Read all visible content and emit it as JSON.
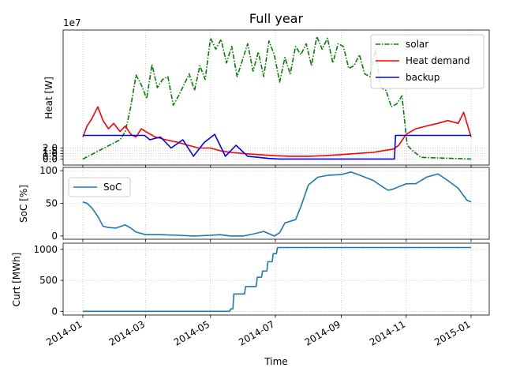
{
  "figure": {
    "title": "Full year",
    "xlabel": "Time",
    "x_ticks": [
      "2014-01",
      "2014-03",
      "2014-05",
      "2014-07",
      "2014-09",
      "2014-11",
      "2015-01"
    ],
    "x_range": [
      "2014-01-01",
      "2015-01-01"
    ],
    "grid": true
  },
  "chart_data": [
    {
      "type": "line",
      "ylabel": "Heat [W]",
      "y_offset_label": "1e7",
      "ylim": [
        -1.1,
        23.5
      ],
      "y_scale_factor": 10000000,
      "y_ticks": [
        0.0,
        0.5,
        1.0,
        1.5,
        2.0
      ],
      "y_tick_labels": [
        "0.0",
        "0.5",
        "1.0",
        "1.5",
        "2.0"
      ],
      "legend_position": "top-right",
      "series": [
        {
          "name": "solar",
          "color": "#008000",
          "style": "dash-dot",
          "x": [
            "2014-01-01",
            "2014-02-05",
            "2014-02-10",
            "2014-02-15",
            "2014-02-20",
            "2014-02-25",
            "2014-03-02",
            "2014-03-07",
            "2014-03-12",
            "2014-03-17",
            "2014-03-22",
            "2014-03-27",
            "2014-04-01",
            "2014-04-06",
            "2014-04-11",
            "2014-04-16",
            "2014-04-21",
            "2014-04-26",
            "2014-05-01",
            "2014-05-06",
            "2014-05-11",
            "2014-05-16",
            "2014-05-21",
            "2014-05-26",
            "2014-05-31",
            "2014-06-05",
            "2014-06-10",
            "2014-06-15",
            "2014-06-20",
            "2014-06-25",
            "2014-06-30",
            "2014-07-05",
            "2014-07-10",
            "2014-07-15",
            "2014-07-20",
            "2014-07-25",
            "2014-07-30",
            "2014-08-04",
            "2014-08-09",
            "2014-08-14",
            "2014-08-19",
            "2014-08-24",
            "2014-08-29",
            "2014-09-03",
            "2014-09-08",
            "2014-09-13",
            "2014-09-18",
            "2014-09-23",
            "2014-09-28",
            "2014-10-03",
            "2014-10-08",
            "2014-10-13",
            "2014-10-18",
            "2014-10-23",
            "2014-10-28",
            "2014-11-02",
            "2014-11-07",
            "2014-11-15",
            "2015-01-01"
          ],
          "values": [
            0.0,
            3.5,
            5.0,
            9.5,
            15.3,
            13.5,
            11.0,
            17.2,
            13.0,
            14.5,
            15.0,
            9.8,
            11.5,
            13.5,
            15.5,
            12.5,
            17.0,
            14.5,
            22.0,
            20.0,
            21.8,
            17.5,
            20.5,
            15.0,
            18.0,
            21.0,
            16.0,
            19.5,
            15.0,
            21.5,
            19.0,
            14.0,
            18.5,
            15.5,
            20.5,
            19.0,
            21.0,
            17.0,
            22.3,
            20.0,
            22.0,
            17.5,
            21.0,
            20.5,
            16.5,
            17.0,
            19.0,
            15.5,
            15.0,
            20.0,
            13.0,
            12.5,
            9.5,
            10.0,
            11.5,
            2.5,
            1.5,
            0.3,
            0.0
          ]
        },
        {
          "name": "Heat demand",
          "color": "#ff0000",
          "style": "solid",
          "x": [
            "2014-01-01",
            "2014-01-05",
            "2014-01-10",
            "2014-01-15",
            "2014-01-20",
            "2014-01-25",
            "2014-01-30",
            "2014-02-05",
            "2014-02-10",
            "2014-02-15",
            "2014-02-20",
            "2014-02-25",
            "2014-03-01",
            "2014-03-10",
            "2014-03-20",
            "2014-04-01",
            "2014-04-10",
            "2014-04-20",
            "2014-05-01",
            "2014-05-10",
            "2014-05-20",
            "2014-06-01",
            "2014-06-15",
            "2014-07-01",
            "2014-07-15",
            "2014-08-01",
            "2014-08-15",
            "2014-09-01",
            "2014-09-15",
            "2014-10-01",
            "2014-10-10",
            "2014-10-20",
            "2014-10-25",
            "2014-11-01",
            "2014-11-10",
            "2014-11-20",
            "2014-12-01",
            "2014-12-10",
            "2014-12-20",
            "2014-12-25",
            "2015-01-01"
          ],
          "values": [
            4.0,
            6.0,
            7.5,
            9.5,
            7.0,
            5.5,
            6.5,
            5.0,
            6.0,
            4.5,
            4.0,
            5.5,
            5.0,
            4.0,
            3.5,
            3.0,
            2.5,
            2.0,
            2.0,
            1.5,
            1.2,
            1.0,
            0.8,
            0.6,
            0.5,
            0.5,
            0.6,
            0.8,
            1.0,
            1.2,
            1.5,
            1.8,
            2.5,
            4.5,
            5.5,
            6.0,
            6.5,
            7.0,
            6.5,
            8.5,
            4.0
          ]
        },
        {
          "name": "backup",
          "color": "#0000ff",
          "style": "solid",
          "x": [
            "2014-01-01",
            "2014-02-28",
            "2014-03-05",
            "2014-03-15",
            "2014-03-25",
            "2014-04-05",
            "2014-04-15",
            "2014-04-25",
            "2014-05-05",
            "2014-05-15",
            "2014-05-25",
            "2014-06-05",
            "2014-06-15",
            "2014-06-25",
            "2014-07-05",
            "2014-08-01",
            "2014-09-01",
            "2014-10-01",
            "2014-10-21",
            "2014-10-22",
            "2015-01-01"
          ],
          "values": [
            4.3,
            4.3,
            3.5,
            4.0,
            2.0,
            3.5,
            0.5,
            3.0,
            4.5,
            0.5,
            2.5,
            0.5,
            0.3,
            0.1,
            0.0,
            0.0,
            0.0,
            0.0,
            0.0,
            4.3,
            4.3
          ]
        }
      ]
    },
    {
      "type": "line",
      "ylabel": "SoC [%]",
      "ylim": [
        -5,
        105
      ],
      "y_ticks": [
        0,
        50,
        100
      ],
      "y_tick_labels": [
        "0",
        "50",
        "100"
      ],
      "legend_position": "top-left",
      "series": [
        {
          "name": "SoC",
          "color": "#1f77b4",
          "style": "solid",
          "x": [
            "2014-01-01",
            "2014-01-05",
            "2014-01-10",
            "2014-01-15",
            "2014-01-20",
            "2014-01-25",
            "2014-02-01",
            "2014-02-10",
            "2014-02-15",
            "2014-02-20",
            "2014-03-01",
            "2014-03-15",
            "2014-04-01",
            "2014-04-15",
            "2014-05-01",
            "2014-05-10",
            "2014-05-20",
            "2014-06-01",
            "2014-06-10",
            "2014-06-20",
            "2014-06-30",
            "2014-07-05",
            "2014-07-10",
            "2014-07-20",
            "2014-07-25",
            "2014-08-01",
            "2014-08-10",
            "2014-08-20",
            "2014-09-01",
            "2014-09-10",
            "2014-09-20",
            "2014-10-01",
            "2014-10-10",
            "2014-10-15",
            "2014-10-20",
            "2014-11-01",
            "2014-11-10",
            "2014-11-20",
            "2014-12-01",
            "2014-12-10",
            "2014-12-20",
            "2014-12-28",
            "2015-01-01"
          ],
          "values": [
            52,
            50,
            42,
            30,
            15,
            13,
            12,
            17,
            12,
            6,
            2,
            2,
            1,
            0,
            1,
            2,
            0,
            0,
            3,
            7,
            0,
            5,
            20,
            25,
            45,
            78,
            90,
            93,
            94,
            98,
            92,
            85,
            75,
            70,
            72,
            80,
            80,
            90,
            95,
            85,
            73,
            55,
            52
          ]
        }
      ]
    },
    {
      "type": "line",
      "ylabel": "Curt [MWh]",
      "ylim": [
        -60,
        1100
      ],
      "y_ticks": [
        0,
        500,
        1000
      ],
      "y_tick_labels": [
        "0",
        "500",
        "1000"
      ],
      "series": [
        {
          "name": "",
          "color": "#1f77b4",
          "style": "solid",
          "x": [
            "2014-01-01",
            "2014-05-19",
            "2014-05-20",
            "2014-05-22",
            "2014-05-23",
            "2014-06-02",
            "2014-06-03",
            "2014-06-13",
            "2014-06-14",
            "2014-06-18",
            "2014-06-19",
            "2014-06-23",
            "2014-06-24",
            "2014-06-28",
            "2014-06-29",
            "2014-07-02",
            "2014-07-03",
            "2015-01-01"
          ],
          "values": [
            0,
            0,
            40,
            40,
            280,
            280,
            400,
            400,
            550,
            550,
            650,
            650,
            800,
            800,
            930,
            930,
            1030,
            1030
          ]
        }
      ]
    }
  ]
}
